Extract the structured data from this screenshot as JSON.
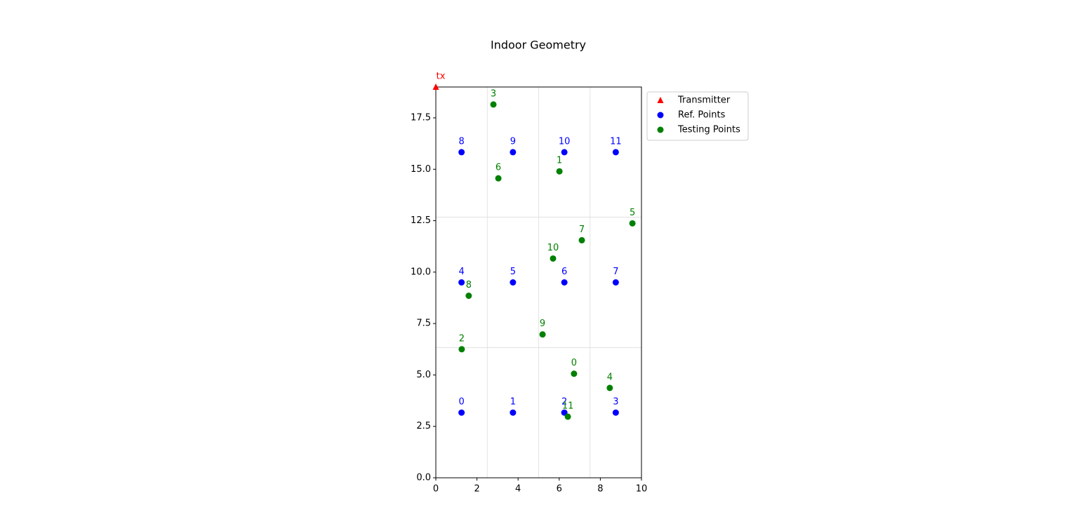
{
  "chart_data": {
    "type": "scatter",
    "title": "Indoor Geometry",
    "xlim": [
      0,
      10
    ],
    "ylim": [
      0,
      19
    ],
    "xticks": [
      0,
      2,
      4,
      6,
      8,
      10
    ],
    "yticks": [
      {
        "value": 0,
        "label": "0.0"
      },
      2.5,
      {
        "value": 5,
        "label": "5.0"
      },
      7.5,
      {
        "value": 10,
        "label": "10.0"
      },
      12.5,
      {
        "value": 15,
        "label": "15.0"
      },
      17.5
    ],
    "room_lines_x": [
      2.5,
      5,
      7.5
    ],
    "room_lines_y": [
      6.33,
      12.67
    ],
    "legend": "outside upper right",
    "series": [
      {
        "name": "Transmitter",
        "color": "#ff0000",
        "marker": "triangle",
        "x": [
          0
        ],
        "y": [
          19
        ],
        "labels": [
          "tx"
        ]
      },
      {
        "name": "Ref. Points",
        "color": "#0000ff",
        "marker": "circle",
        "x": [
          1.25,
          3.75,
          6.25,
          8.75,
          1.25,
          3.75,
          6.25,
          8.75,
          1.25,
          3.75,
          6.25,
          8.75
        ],
        "y": [
          3.17,
          3.17,
          3.17,
          3.17,
          9.5,
          9.5,
          9.5,
          9.5,
          15.83,
          15.83,
          15.83,
          15.83
        ],
        "labels": [
          "0",
          "1",
          "2",
          "3",
          "4",
          "5",
          "6",
          "7",
          "8",
          "9",
          "10",
          "11"
        ]
      },
      {
        "name": "Testing Points",
        "color": "#008000",
        "marker": "circle",
        "x": [
          6.72,
          6.01,
          1.26,
          2.8,
          8.46,
          9.56,
          3.04,
          7.1,
          1.6,
          5.19,
          5.7,
          6.42
        ],
        "y": [
          5.06,
          14.9,
          6.25,
          18.15,
          4.37,
          12.37,
          14.56,
          11.55,
          8.85,
          6.97,
          10.66,
          2.97
        ],
        "labels": [
          "0",
          "1",
          "2",
          "3",
          "4",
          "5",
          "6",
          "7",
          "8",
          "9",
          "10",
          "11"
        ]
      }
    ]
  }
}
